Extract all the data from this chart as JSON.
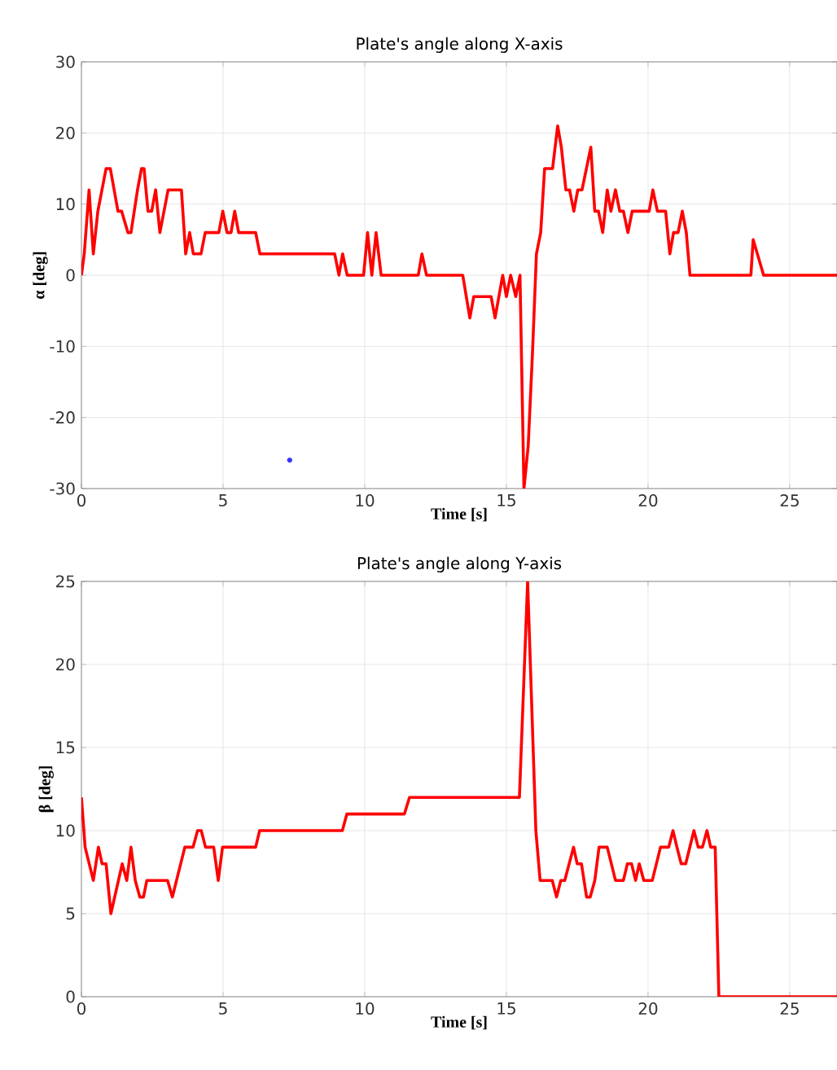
{
  "chart_data": [
    {
      "type": "line",
      "title": "Plate's angle along X-axis",
      "xlabel": "Time [s]",
      "ylabel": "α [deg]",
      "xlim": [
        0,
        26.67
      ],
      "ylim": [
        -30,
        30
      ],
      "xticks": [
        0,
        5,
        10,
        15,
        20,
        25
      ],
      "yticks": [
        -30,
        -20,
        -10,
        0,
        10,
        20,
        30
      ],
      "grid": true,
      "marker": "none",
      "line_style": "solid",
      "series": [
        {
          "type": "line",
          "color": "#ff0000",
          "x": [
            0,
            0.1,
            0.27,
            0.42,
            0.58,
            0.87,
            1.02,
            1.29,
            1.42,
            1.64,
            1.75,
            1.98,
            2.12,
            2.21,
            2.35,
            2.48,
            2.62,
            2.77,
            3.06,
            3.53,
            3.68,
            3.82,
            3.95,
            4.22,
            4.37,
            4.85,
            4.99,
            5.14,
            5.28,
            5.41,
            5.55,
            6.15,
            6.3,
            8.94,
            9.09,
            9.22,
            9.38,
            9.96,
            10.1,
            10.25,
            10.4,
            10.58,
            11.89,
            12.02,
            12.18,
            13.46,
            13.71,
            13.85,
            14.46,
            14.6,
            14.87,
            15,
            15.15,
            15.33,
            15.48,
            15.62,
            15.77,
            15.92,
            16.06,
            16.21,
            16.35,
            16.63,
            16.81,
            16.94,
            17.1,
            17.23,
            17.38,
            17.52,
            17.67,
            17.98,
            18.12,
            18.25,
            18.4,
            18.56,
            18.69,
            18.85,
            19,
            19.13,
            19.29,
            19.44,
            20.04,
            20.17,
            20.33,
            20.62,
            20.77,
            20.9,
            21.06,
            21.21,
            21.35,
            21.48,
            23.63,
            23.71,
            24.08,
            26.67
          ],
          "values": [
            0,
            3,
            12,
            3,
            9,
            15,
            15,
            9,
            9,
            6,
            6,
            12,
            15,
            15,
            9,
            9,
            12,
            6,
            12,
            12,
            3,
            6,
            3,
            3,
            6,
            6,
            9,
            6,
            6,
            9,
            6,
            6,
            3,
            3,
            0,
            3,
            0,
            0,
            6,
            0,
            6,
            0,
            0,
            3,
            0,
            0,
            -6,
            -3,
            -3,
            -6,
            0,
            -3,
            0,
            -3,
            0,
            -30,
            -24,
            -11,
            3,
            6,
            15,
            15,
            21,
            18,
            12,
            12,
            9,
            12,
            12,
            18,
            9,
            9,
            6,
            12,
            9,
            12,
            9,
            9,
            6,
            9,
            9,
            12,
            9,
            9,
            3,
            6,
            6,
            9,
            6,
            0,
            0,
            5,
            0,
            0
          ]
        },
        {
          "type": "scatter",
          "color": "#3333ff",
          "x": [
            7.35
          ],
          "values": [
            -26
          ]
        }
      ]
    },
    {
      "type": "line",
      "title": "Plate's angle along Y-axis",
      "xlabel": "Time [s]",
      "ylabel": "β [deg]",
      "xlim": [
        0,
        26.67
      ],
      "ylim": [
        0,
        25
      ],
      "xticks": [
        0,
        5,
        10,
        15,
        20,
        25
      ],
      "yticks": [
        0,
        5,
        10,
        15,
        20,
        25
      ],
      "grid": true,
      "marker": "none",
      "line_style": "solid",
      "series": [
        {
          "type": "line",
          "color": "#ff0000",
          "x": [
            0,
            0.13,
            0.42,
            0.6,
            0.73,
            0.87,
            1.04,
            1.44,
            1.6,
            1.75,
            1.9,
            2.06,
            2.19,
            2.31,
            3.04,
            3.21,
            3.65,
            3.94,
            4.1,
            4.23,
            4.38,
            4.67,
            4.83,
            4.98,
            6.15,
            6.29,
            9.21,
            9.37,
            11.4,
            11.58,
            15.46,
            15.75,
            16.04,
            16.19,
            16.62,
            16.77,
            16.92,
            17.06,
            17.37,
            17.5,
            17.65,
            17.83,
            17.96,
            18.12,
            18.27,
            18.56,
            18.85,
            19.13,
            19.27,
            19.42,
            19.56,
            19.69,
            19.85,
            20.15,
            20.44,
            20.73,
            20.88,
            21.02,
            21.17,
            21.33,
            21.62,
            21.77,
            21.92,
            22.08,
            22.21,
            22.37,
            22.5,
            26.67
          ],
          "values": [
            12,
            9,
            7,
            9,
            8,
            8,
            5,
            8,
            7,
            9,
            7,
            6,
            6,
            7,
            7,
            6,
            9,
            9,
            10,
            10,
            9,
            9,
            7,
            9,
            9,
            10,
            10,
            11,
            11,
            12,
            12,
            25,
            10,
            7,
            7,
            6,
            7,
            7,
            9,
            8,
            8,
            6,
            6,
            7,
            9,
            9,
            7,
            7,
            8,
            8,
            7,
            8,
            7,
            7,
            9,
            9,
            10,
            9,
            8,
            8,
            10,
            9,
            9,
            10,
            9,
            9,
            0,
            0
          ]
        }
      ]
    }
  ]
}
